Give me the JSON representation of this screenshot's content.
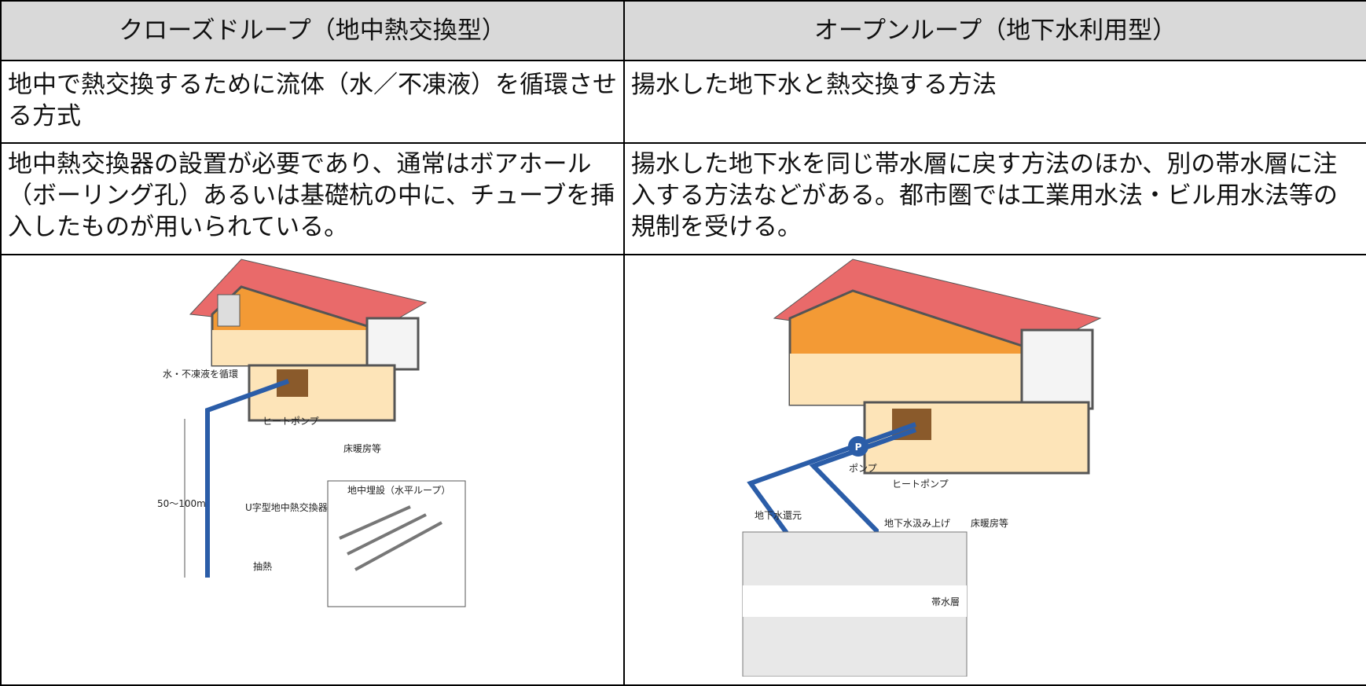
{
  "header": {
    "left": "クローズドループ（地中熱交換型）",
    "right": "オープンループ（地下水利用型）"
  },
  "rows": [
    [
      "地中で熱交換するために流体（水／不凍液）を循環させる方式",
      "揚水した地下水と熱交換する方法"
    ],
    [
      "地中熱交換器の設置が必要であり、通常はボアホール（ボーリング孔）あるいは基礎杭の中に、チューブを挿入したものが用いられている。",
      "揚水した地下水を同じ帯水層に戻す方法のほか、別の帯水層に注入する方法などがある。都市圏では工業用水法・ビル用水法等の規制を受ける。"
    ]
  ],
  "diagrams": {
    "left": {
      "circulate": "水・不凍液を循環",
      "heat_pump": "ヒートポンプ",
      "floor_heating": "床暖房等",
      "depth": "50〜100m",
      "exchanger": "U字型地中熱交換器",
      "inset": "地中埋設（水平ループ）",
      "extract": "抽熱"
    },
    "right": {
      "pump_icon": "P",
      "pump": "ポンプ",
      "heat_pump": "ヒートポンプ",
      "return": "地下水還元",
      "pumping": "地下水汲み上げ",
      "floor_heating": "床暖房等",
      "aquifer": "帯水層"
    }
  }
}
